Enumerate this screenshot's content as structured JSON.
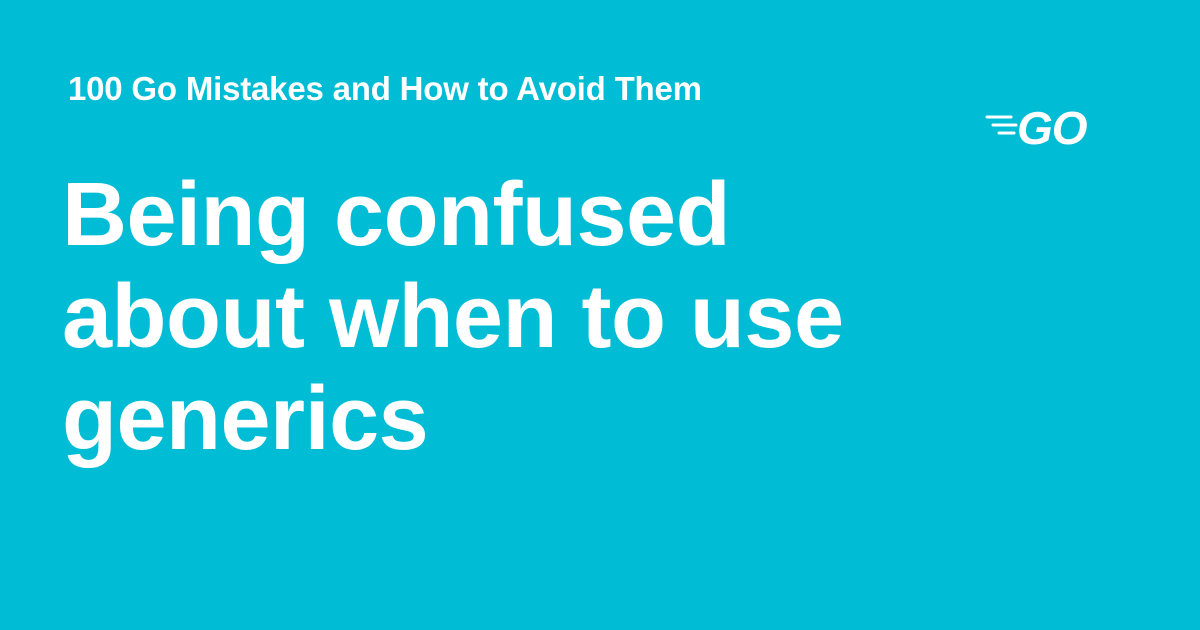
{
  "card": {
    "background_color": "#00BCD4",
    "text_color": "#FFFFFF",
    "series_title": "100 Go Mistakes and How to Avoid Them",
    "headline": "Being confused about when to use generics",
    "logo": {
      "icon": "go-logo-icon",
      "text": "GO"
    }
  }
}
